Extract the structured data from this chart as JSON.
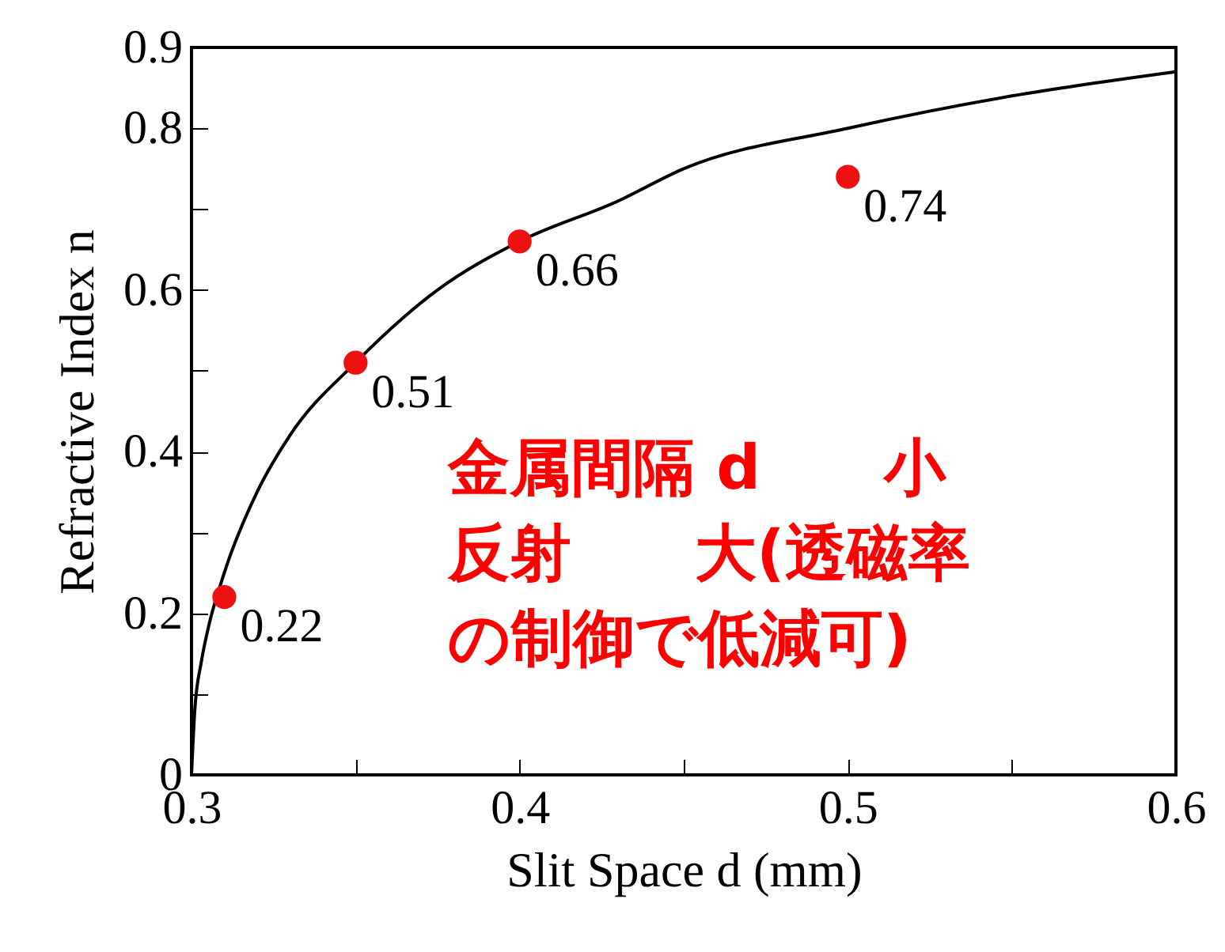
{
  "chart_data": {
    "type": "scatter",
    "xlabel": "Slit Space d (mm)",
    "ylabel": "Refractive Index n",
    "xlim": [
      0.3,
      0.6
    ],
    "xticks": [
      0.3,
      {
        "value": 0.35,
        "label": null
      },
      0.4,
      {
        "value": 0.45,
        "label": null
      },
      0.5,
      {
        "value": 0.55,
        "label": null
      },
      0.6
    ],
    "ylim": [
      0,
      0.9
    ],
    "yticks": [
      0,
      {
        "value": 0.1,
        "label": null
      },
      0.2,
      {
        "value": 0.3,
        "label": null
      },
      0.4,
      {
        "value": 0.5,
        "label": null
      },
      0.6,
      {
        "value": 0.7,
        "label": null
      },
      0.8,
      0.9
    ],
    "grid": false,
    "series": [
      {
        "type": "line",
        "color": "#000000",
        "marker": "none",
        "x": [
          0.3,
          0.301,
          0.303,
          0.305,
          0.31,
          0.32,
          0.33,
          0.35,
          0.375,
          0.4,
          0.43,
          0.45,
          0.5,
          0.55,
          0.6
        ],
        "values": [
          0,
          0.08,
          0.14,
          0.18,
          0.25,
          0.35,
          0.42,
          0.51,
          0.6,
          0.66,
          0.71,
          0.75,
          0.8,
          0.84,
          0.87
        ]
      },
      {
        "color": "#ee1111",
        "marker": "circle",
        "data_labels": true,
        "x": [
          0.31,
          0.35,
          0.4,
          0.5
        ],
        "values": [
          0.22,
          0.51,
          0.66,
          0.74
        ]
      }
    ],
    "annotations": [
      "金属間隔 d　　小",
      "反射　　大(透磁率",
      "の制御で低減可)"
    ]
  }
}
